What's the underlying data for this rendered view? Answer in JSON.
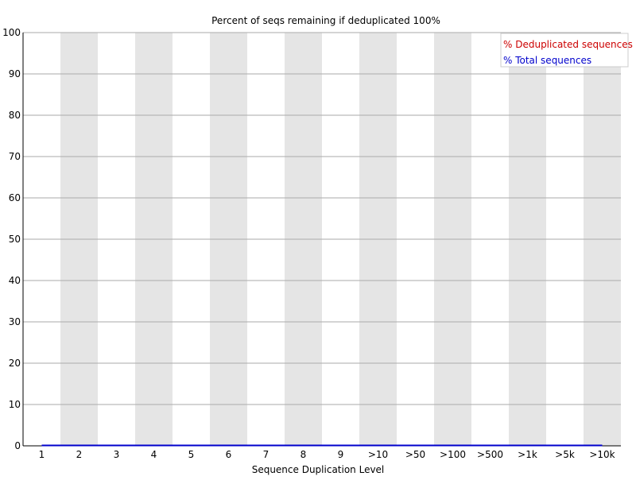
{
  "chart_data": {
    "type": "line",
    "title": "Percent of seqs remaining if deduplicated 100%",
    "xlabel": "Sequence Duplication Level",
    "ylabel": "",
    "categories": [
      "1",
      "2",
      "3",
      "4",
      "5",
      "6",
      "7",
      "8",
      "9",
      ">10",
      ">50",
      ">100",
      ">500",
      ">1k",
      ">5k",
      ">10k"
    ],
    "ylim": [
      0,
      100
    ],
    "yticks": [
      0,
      10,
      20,
      30,
      40,
      50,
      60,
      70,
      80,
      90,
      100
    ],
    "grid": true,
    "legend_position": "top-right",
    "series": [
      {
        "name": "% Deduplicated sequences",
        "color": "#cc0000",
        "values": [
          0,
          0,
          0,
          0,
          0,
          0,
          0,
          0,
          0,
          0,
          0,
          0,
          0,
          0,
          0,
          0
        ]
      },
      {
        "name": "% Total sequences",
        "color": "#0000cc",
        "values": [
          0,
          0,
          0,
          0,
          0,
          0,
          0,
          0,
          0,
          0,
          0,
          0,
          0,
          0,
          0,
          0
        ]
      }
    ]
  },
  "colors": {
    "band": "#e5e5e5",
    "gridline": "#aaaaaa",
    "axis": "#000000"
  }
}
